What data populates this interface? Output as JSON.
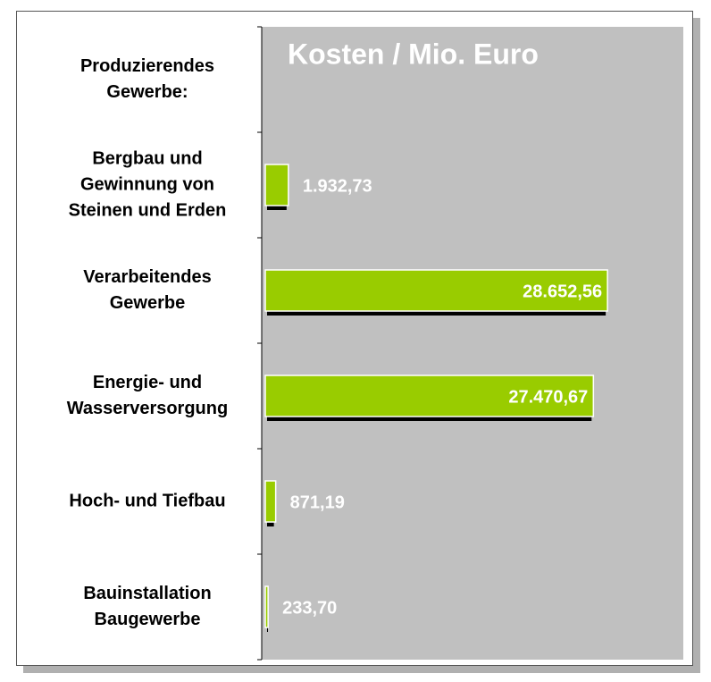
{
  "chart_data": {
    "type": "bar",
    "orientation": "horizontal",
    "title": "Kosten / Mio. Euro",
    "categories": [
      "Produzierendes\nGewerbe:",
      "Bergbau und\nGewinnung von\nSteinen und Erden",
      "Verarbeitendes\nGewerbe",
      "Energie- und\nWasserversorgung",
      "Hoch- und Tiefbau",
      "Bauinstallation\nBaugewerbe"
    ],
    "values": [
      null,
      1932.73,
      28652.56,
      27470.67,
      871.19,
      233.7
    ],
    "value_labels": [
      null,
      "1.932,73",
      "28.652,56",
      "27.470,67",
      "871,19",
      "233,70"
    ],
    "color": "#99cc00",
    "xlim": [
      0,
      35000
    ],
    "grid": false
  }
}
